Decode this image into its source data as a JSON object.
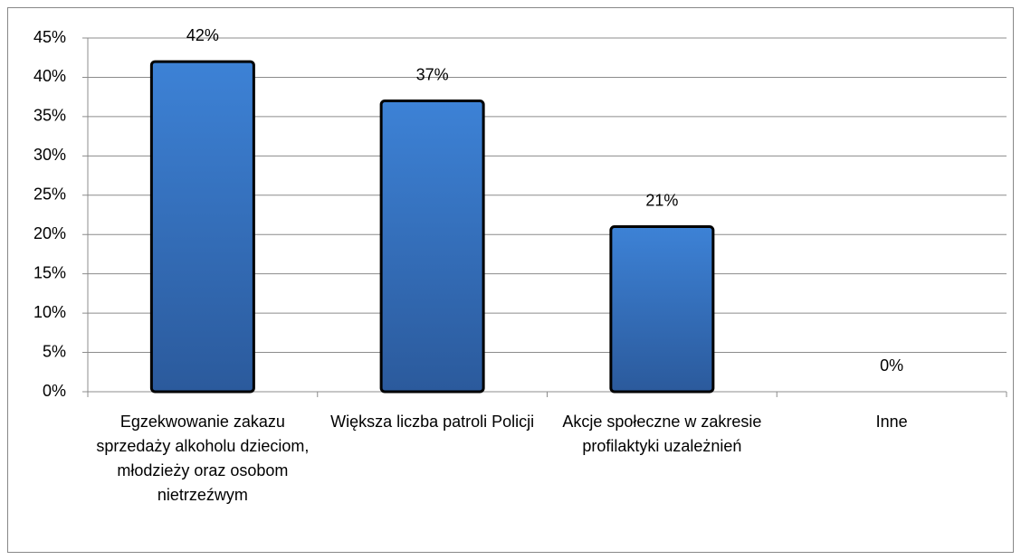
{
  "chart_data": {
    "type": "bar",
    "categories": [
      "Egzekwowanie zakazu sprzedaży alkoholu dzieciom, młodzieży oraz osobom nietrzeźwym",
      "Większa liczba patroli Policji",
      "Akcje społeczne w zakresie profilaktyki uzależnień",
      "Inne"
    ],
    "values": [
      42,
      37,
      21,
      0
    ],
    "value_labels": [
      "42%",
      "37%",
      "21%",
      "0%"
    ],
    "color": "#3a7bcc",
    "ylim": [
      0,
      45
    ],
    "yticks": [
      {
        "value": 0,
        "label": "0%"
      },
      {
        "value": 5,
        "label": "5%"
      },
      {
        "value": 10,
        "label": "10%"
      },
      {
        "value": 15,
        "label": "15%"
      },
      {
        "value": 20,
        "label": "20%"
      },
      {
        "value": 25,
        "label": "25%"
      },
      {
        "value": 30,
        "label": "30%"
      },
      {
        "value": 35,
        "label": "35%"
      },
      {
        "value": 40,
        "label": "40%"
      },
      {
        "value": 45,
        "label": "45%"
      }
    ],
    "grid": true
  }
}
